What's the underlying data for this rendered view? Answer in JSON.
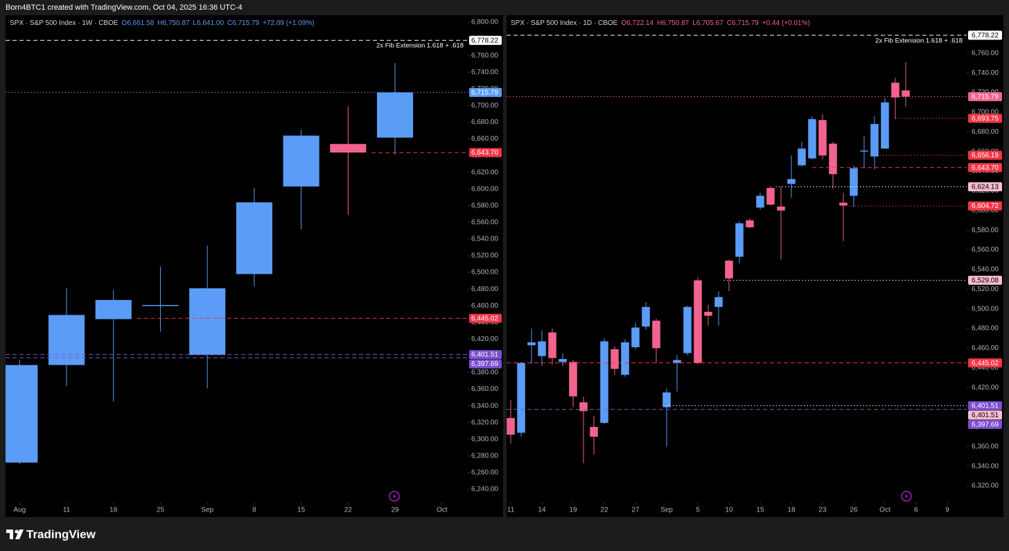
{
  "header": "Born4BTC1 created with TradingView.com, Oct 04, 2025 16:36 UTC-4",
  "brand": "TradingView",
  "chart_data": [
    {
      "type": "candlestick",
      "title": "SPX · S&P 500 Index · 1W · CBOE",
      "legend": [
        "O6,661.58",
        "H6,750.87",
        "L6,641.00",
        "C6,715.79",
        "+72.09 (+1.09%)"
      ],
      "legend_color": "#5b9cf6",
      "up_color": "#5b9cf6",
      "down_color": "#f2638e",
      "x": [
        0,
        1,
        2,
        3,
        4,
        5,
        6,
        7,
        8
      ],
      "open": [
        6272,
        6389,
        6444,
        6460,
        6401,
        6498,
        6603,
        6654,
        6661.58
      ],
      "high": [
        6395,
        6481,
        6479,
        6507,
        6532,
        6601,
        6671,
        6699,
        6750.87
      ],
      "low": [
        6270,
        6364,
        6345,
        6429,
        6361,
        6483,
        6552,
        6569,
        6641
      ],
      "close": [
        6389,
        6449,
        6467,
        6461,
        6481,
        6584,
        6664,
        6643.7,
        6715.79
      ],
      "xlim": [
        -0.3,
        9.55
      ],
      "ylim": [
        6224.2,
        6808.3
      ],
      "xticks": [
        {
          "value": 0,
          "label": "Aug"
        },
        {
          "value": 1,
          "label": "11"
        },
        {
          "value": 2,
          "label": "18"
        },
        {
          "value": 3,
          "label": "25"
        },
        {
          "value": 4,
          "label": "Sep"
        },
        {
          "value": 5,
          "label": "8"
        },
        {
          "value": 6,
          "label": "15"
        },
        {
          "value": 7,
          "label": "22"
        },
        {
          "value": 8,
          "label": "29"
        },
        {
          "value": 9,
          "label": "Oct"
        }
      ],
      "yticks": [
        {
          "value": 6240,
          "label": "6,240.00"
        },
        {
          "value": 6260,
          "label": "6,260.00"
        },
        {
          "value": 6280,
          "label": "6,280.00"
        },
        {
          "value": 6300,
          "label": "6,300.00"
        },
        {
          "value": 6320,
          "label": "6,320.00"
        },
        {
          "value": 6340,
          "label": "6,340.00"
        },
        {
          "value": 6360,
          "label": "6,360.00"
        },
        {
          "value": 6380,
          "label": "6,380.00"
        },
        {
          "value": 6400,
          "label": "6,400.00"
        },
        {
          "value": 6420,
          "label": "6,420.00"
        },
        {
          "value": 6440,
          "label": "6,440.00"
        },
        {
          "value": 6460,
          "label": "6,460.00"
        },
        {
          "value": 6480,
          "label": "6,480.00"
        },
        {
          "value": 6500,
          "label": "6,500.00"
        },
        {
          "value": 6520,
          "label": "6,520.00"
        },
        {
          "value": 6540,
          "label": "6,540.00"
        },
        {
          "value": 6560,
          "label": "6,560.00"
        },
        {
          "value": 6580,
          "label": "6,580.00"
        },
        {
          "value": 6600,
          "label": "6,600.00"
        },
        {
          "value": 6620,
          "label": "6,620.00"
        },
        {
          "value": 6640,
          "label": "6,640.00"
        },
        {
          "value": 6660,
          "label": "6,660.00"
        },
        {
          "value": 6680,
          "label": "6,680.00"
        },
        {
          "value": 6700,
          "label": "6,700.00"
        },
        {
          "value": 6720,
          "label": "6,720.00"
        },
        {
          "value": 6740,
          "label": "6,740.00"
        },
        {
          "value": 6760,
          "label": "6,760.00"
        },
        {
          "value": 6780,
          "label": "6,780.00"
        },
        {
          "value": 6800,
          "label": "6,800.00"
        }
      ],
      "levels": [
        {
          "value": 6778.22,
          "label": "6,778.22",
          "color": "#ffffff",
          "label_bg": "#ffffff",
          "style": "dashed",
          "note": "2x Fib Extension 1.618 + .618"
        },
        {
          "value": 6715.79,
          "label": "6,715.79",
          "color": "#5b9cf6",
          "label_bg": "#5b9cf6",
          "style": "dotted"
        },
        {
          "value": 6643.7,
          "label": "6,643.70",
          "color": "#f23645",
          "label_bg": "#f23645",
          "style": "dashed",
          "x0": 7.5
        },
        {
          "value": 6445.02,
          "label": "6,445.02",
          "color": "#f23645",
          "label_bg": "#f23645",
          "style": "dashed",
          "x0": 2.5
        },
        {
          "value": 6401.51,
          "label": "6,401.51",
          "color": "#7e57c2",
          "label_bg": "#7b4fcf",
          "style": "dashed"
        },
        {
          "value": 6397.69,
          "label": "6,397.69",
          "color": "#7e57c2",
          "label_bg": "#7b4fcf",
          "style": "dashed"
        }
      ]
    },
    {
      "type": "candlestick",
      "title": "SPX · S&P 500 Index · 1D · CBOE",
      "legend": [
        "O6,722.14",
        "H6,750.87",
        "L6,705.67",
        "C6,715.79",
        "+0.44 (+0.01%)"
      ],
      "legend_color": "#f2638e",
      "up_color": "#5b9cf6",
      "down_color": "#f2638e",
      "x": [
        0,
        1,
        2,
        3,
        4,
        5,
        6,
        7,
        8,
        9,
        10,
        11,
        12,
        13,
        14,
        15,
        16,
        17,
        18,
        19,
        20,
        21,
        22,
        23,
        24,
        25,
        26,
        27,
        28,
        29,
        30,
        31,
        32,
        33,
        34,
        35,
        36,
        37,
        38
      ],
      "open": [
        6389,
        6374,
        6463,
        6452,
        6476,
        6446,
        6446,
        6405,
        6380,
        6384,
        6459,
        6433,
        6461,
        6482,
        6488,
        6400,
        6445,
        6455,
        6529,
        6497,
        6502,
        6549,
        6553,
        6590,
        6603,
        6623,
        6604,
        6627,
        6646,
        6653,
        6692,
        6668,
        6608,
        6615,
        6660,
        6655,
        6663,
        6730,
        6722.14
      ],
      "high": [
        6407,
        6446,
        6480,
        6478,
        6480,
        6455,
        6448,
        6411,
        6391,
        6470,
        6462,
        6469,
        6486,
        6507,
        6490,
        6419,
        6453,
        6503,
        6532,
        6504,
        6518,
        6550,
        6589,
        6592,
        6618,
        6625,
        6624,
        6656,
        6670,
        6696,
        6698,
        6670,
        6618,
        6646,
        6676,
        6696,
        6715,
        6735,
        6750.87
      ],
      "low": [
        6363,
        6370,
        6444,
        6442,
        6443,
        6442,
        6400,
        6343,
        6352,
        6383,
        6433,
        6431,
        6459,
        6479,
        6445,
        6360,
        6416,
        6453,
        6444,
        6483,
        6483,
        6518,
        6546,
        6582,
        6601,
        6605,
        6550,
        6613,
        6645,
        6652,
        6652,
        6622,
        6569,
        6604,
        6643,
        6642,
        6663,
        6693,
        6705.67
      ],
      "close": [
        6372,
        6445,
        6466,
        6467,
        6450,
        6449,
        6411,
        6396,
        6370,
        6467,
        6439,
        6466,
        6481,
        6502,
        6460,
        6415,
        6448,
        6502,
        6445,
        6493,
        6512,
        6531,
        6587,
        6583,
        6615,
        6606,
        6600,
        6632,
        6663,
        6693,
        6656,
        6637,
        6605,
        6643,
        6661,
        6688,
        6710,
        6715,
        6715.79
      ],
      "xlim": [
        -0.4,
        43.87
      ],
      "ylim": [
        6303.1,
        6798.6
      ],
      "xticks": [
        {
          "value": 0,
          "label": "11"
        },
        {
          "value": 3,
          "label": "14"
        },
        {
          "value": 6,
          "label": "19"
        },
        {
          "value": 9,
          "label": "22"
        },
        {
          "value": 12,
          "label": "27"
        },
        {
          "value": 15,
          "label": "Sep"
        },
        {
          "value": 18,
          "label": "5"
        },
        {
          "value": 21,
          "label": "10"
        },
        {
          "value": 24,
          "label": "15"
        },
        {
          "value": 27,
          "label": "18"
        },
        {
          "value": 30,
          "label": "23"
        },
        {
          "value": 33,
          "label": "26"
        },
        {
          "value": 36,
          "label": "Oct"
        },
        {
          "value": 39,
          "label": "6"
        },
        {
          "value": 42,
          "label": "9"
        }
      ],
      "yticks": [
        {
          "value": 6320,
          "label": "6,320.00"
        },
        {
          "value": 6340,
          "label": "6,340.00"
        },
        {
          "value": 6360,
          "label": "6,360.00"
        },
        {
          "value": 6380,
          "label": "6,380.00"
        },
        {
          "value": 6400,
          "label": "6,400.00"
        },
        {
          "value": 6420,
          "label": "6,420.00"
        },
        {
          "value": 6440,
          "label": "6,440.00"
        },
        {
          "value": 6460,
          "label": "6,460.00"
        },
        {
          "value": 6480,
          "label": "6,480.00"
        },
        {
          "value": 6500,
          "label": "6,500.00"
        },
        {
          "value": 6520,
          "label": "6,520.00"
        },
        {
          "value": 6540,
          "label": "6,540.00"
        },
        {
          "value": 6560,
          "label": "6,560.00"
        },
        {
          "value": 6580,
          "label": "6,580.00"
        },
        {
          "value": 6600,
          "label": "6,600.00"
        },
        {
          "value": 6620,
          "label": "6,620.00"
        },
        {
          "value": 6640,
          "label": "6,640.00"
        },
        {
          "value": 6660,
          "label": "6,660.00"
        },
        {
          "value": 6680,
          "label": "6,680.00"
        },
        {
          "value": 6700,
          "label": "6,700.00"
        },
        {
          "value": 6720,
          "label": "6,720.00"
        },
        {
          "value": 6740,
          "label": "6,740.00"
        },
        {
          "value": 6760,
          "label": "6,760.00"
        },
        {
          "value": 6780,
          "label": "6,780.00"
        }
      ],
      "levels": [
        {
          "value": 6778.22,
          "label": "6,778.22",
          "color": "#ffffff",
          "label_bg": "#ffffff",
          "style": "dashed",
          "note": "2x Fib Extension 1.618 + .618"
        },
        {
          "value": 6715.79,
          "label": "6,715.79",
          "color": "#f2638e",
          "label_bg": "#f2638e",
          "style": "dotted"
        },
        {
          "value": 6693.75,
          "label": "6,693.75",
          "color": "#f23645",
          "label_bg": "#f23645",
          "style": "dotted",
          "x0": 37
        },
        {
          "value": 6656.19,
          "label": "6,656.19",
          "color": "#f23645",
          "label_bg": "#f23645",
          "style": "dotted",
          "x0": 35.5
        },
        {
          "value": 6643.7,
          "label": "6,643.70",
          "color": "#f23645",
          "label_bg": "#f23645",
          "style": "dashed",
          "x0": 29
        },
        {
          "value": 6624.13,
          "label": "6,624.13",
          "color": "#ffffff",
          "label_bg": "#f8bbd0",
          "style": "dotted",
          "x0": 25.5
        },
        {
          "value": 6604.72,
          "label": "6,604.72",
          "color": "#f23645",
          "label_bg": "#f23645",
          "style": "dotted",
          "x0": 32.5
        },
        {
          "value": 6529.08,
          "label": "6,529.08",
          "color": "#ffffff",
          "label_bg": "#f8bbd0",
          "style": "dotted",
          "x0": 20.5
        },
        {
          "value": 6445.02,
          "label": "6,445.02",
          "color": "#f23645",
          "label_bg": "#f23645",
          "style": "dashed"
        },
        {
          "value": 6401.51,
          "label": "6,401.51",
          "color": "#ffffff",
          "label_bg": "#7b4fcf",
          "style": "dotted",
          "x0": 15
        },
        {
          "value": 6401.51,
          "label": "6,401.51",
          "color": "#f8bbd0",
          "label_bg": "#f8bbd0",
          "style": "dotted",
          "x0": 15
        },
        {
          "value": 6397.69,
          "label": "6,397.69",
          "color": "#7e57c2",
          "label_bg": "#7b4fcf",
          "style": "dashed"
        }
      ]
    }
  ]
}
